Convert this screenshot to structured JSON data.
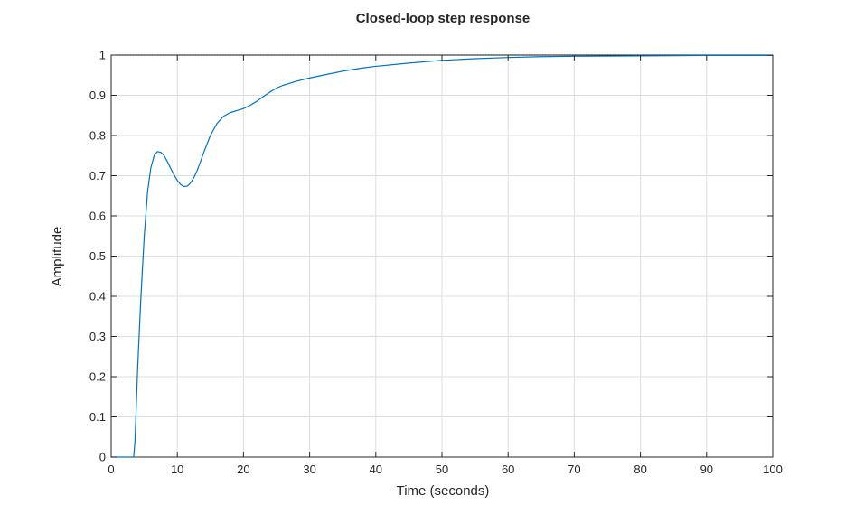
{
  "chart_data": {
    "type": "line",
    "title": "Closed-loop step response",
    "xlabel": "Time (seconds)",
    "ylabel": "Amplitude",
    "xlim": [
      0,
      100
    ],
    "ylim": [
      0,
      1
    ],
    "xticks": [
      "0",
      "10",
      "20",
      "30",
      "40",
      "50",
      "60",
      "70",
      "80",
      "90",
      "100"
    ],
    "yticks": [
      "0",
      "0.1",
      "0.2",
      "0.3",
      "0.4",
      "0.5",
      "0.6",
      "0.7",
      "0.8",
      "0.9",
      "1"
    ],
    "xtick_values": [
      0,
      10,
      20,
      30,
      40,
      50,
      60,
      70,
      80,
      90,
      100
    ],
    "ytick_values": [
      0,
      0.1,
      0.2,
      0.3,
      0.4,
      0.5,
      0.6,
      0.7,
      0.8,
      0.9,
      1
    ],
    "grid": true,
    "reference_line": {
      "y": 1,
      "style": "dotted",
      "color": "#000000"
    },
    "series": [
      {
        "color": "#0072BD",
        "x": [
          0,
          3.4,
          3.6,
          4,
          4.5,
          5,
          5.5,
          6,
          6.5,
          7,
          7.5,
          8,
          8.5,
          9,
          9.5,
          10,
          10.5,
          11,
          11.5,
          12,
          12.5,
          13,
          13.5,
          14,
          15,
          16,
          17,
          18,
          19,
          20,
          21,
          22,
          23,
          24,
          25,
          26,
          27,
          28,
          30,
          32,
          35,
          38,
          40,
          45,
          50,
          55,
          60,
          65,
          70,
          80,
          90,
          100
        ],
        "y": [
          0,
          0,
          0.04,
          0.22,
          0.4,
          0.55,
          0.66,
          0.72,
          0.75,
          0.76,
          0.758,
          0.75,
          0.735,
          0.718,
          0.702,
          0.688,
          0.678,
          0.673,
          0.674,
          0.682,
          0.695,
          0.713,
          0.735,
          0.758,
          0.8,
          0.83,
          0.848,
          0.857,
          0.862,
          0.867,
          0.875,
          0.885,
          0.897,
          0.908,
          0.918,
          0.925,
          0.93,
          0.935,
          0.943,
          0.95,
          0.96,
          0.968,
          0.972,
          0.98,
          0.987,
          0.991,
          0.994,
          0.996,
          0.997,
          0.998,
          0.999,
          0.999
        ]
      }
    ]
  }
}
